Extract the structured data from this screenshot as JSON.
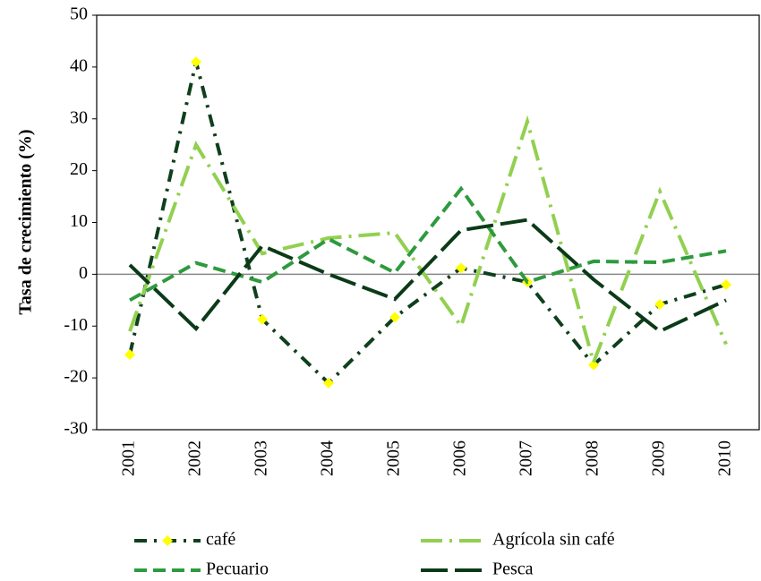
{
  "chart_data": {
    "type": "line",
    "y_label": "Tasa de crecimiento (%)",
    "categories": [
      "2001",
      "2002",
      "2003",
      "2004",
      "2005",
      "2006",
      "2007",
      "2008",
      "2009",
      "2010"
    ],
    "series": [
      {
        "name": "café",
        "color": "#0f3f1c",
        "dash": "dash-dot",
        "marker": "diamond",
        "marker_color": "#ffff00",
        "values": [
          -15.5,
          41,
          -8.7,
          -21,
          -8.3,
          1.2,
          -1.5,
          -17.5,
          -5.8,
          -2
        ]
      },
      {
        "name": "Agrícola sin café",
        "color": "#92d050",
        "dash": "long-dash-dot",
        "values": [
          -11,
          25,
          4,
          7,
          8,
          -10,
          29.5,
          -17,
          16,
          -13.5
        ]
      },
      {
        "name": "Pecuario",
        "color": "#2e9a3e",
        "dash": "dash",
        "values": [
          -5,
          2.2,
          -1.5,
          6.8,
          0.3,
          16.5,
          -1.5,
          2.5,
          2.3,
          4.5
        ]
      },
      {
        "name": "Pesca",
        "color": "#0b3a18",
        "dash": "long-dash",
        "values": [
          1.8,
          -10.5,
          5.5,
          0,
          -4.8,
          8.5,
          10.5,
          -1,
          -11,
          -5
        ]
      }
    ],
    "ylim": [
      -30,
      50
    ],
    "yticks": [
      -30,
      -20,
      -10,
      0,
      10,
      20,
      30,
      40,
      50
    ],
    "grid": false,
    "legend": "bottom"
  }
}
